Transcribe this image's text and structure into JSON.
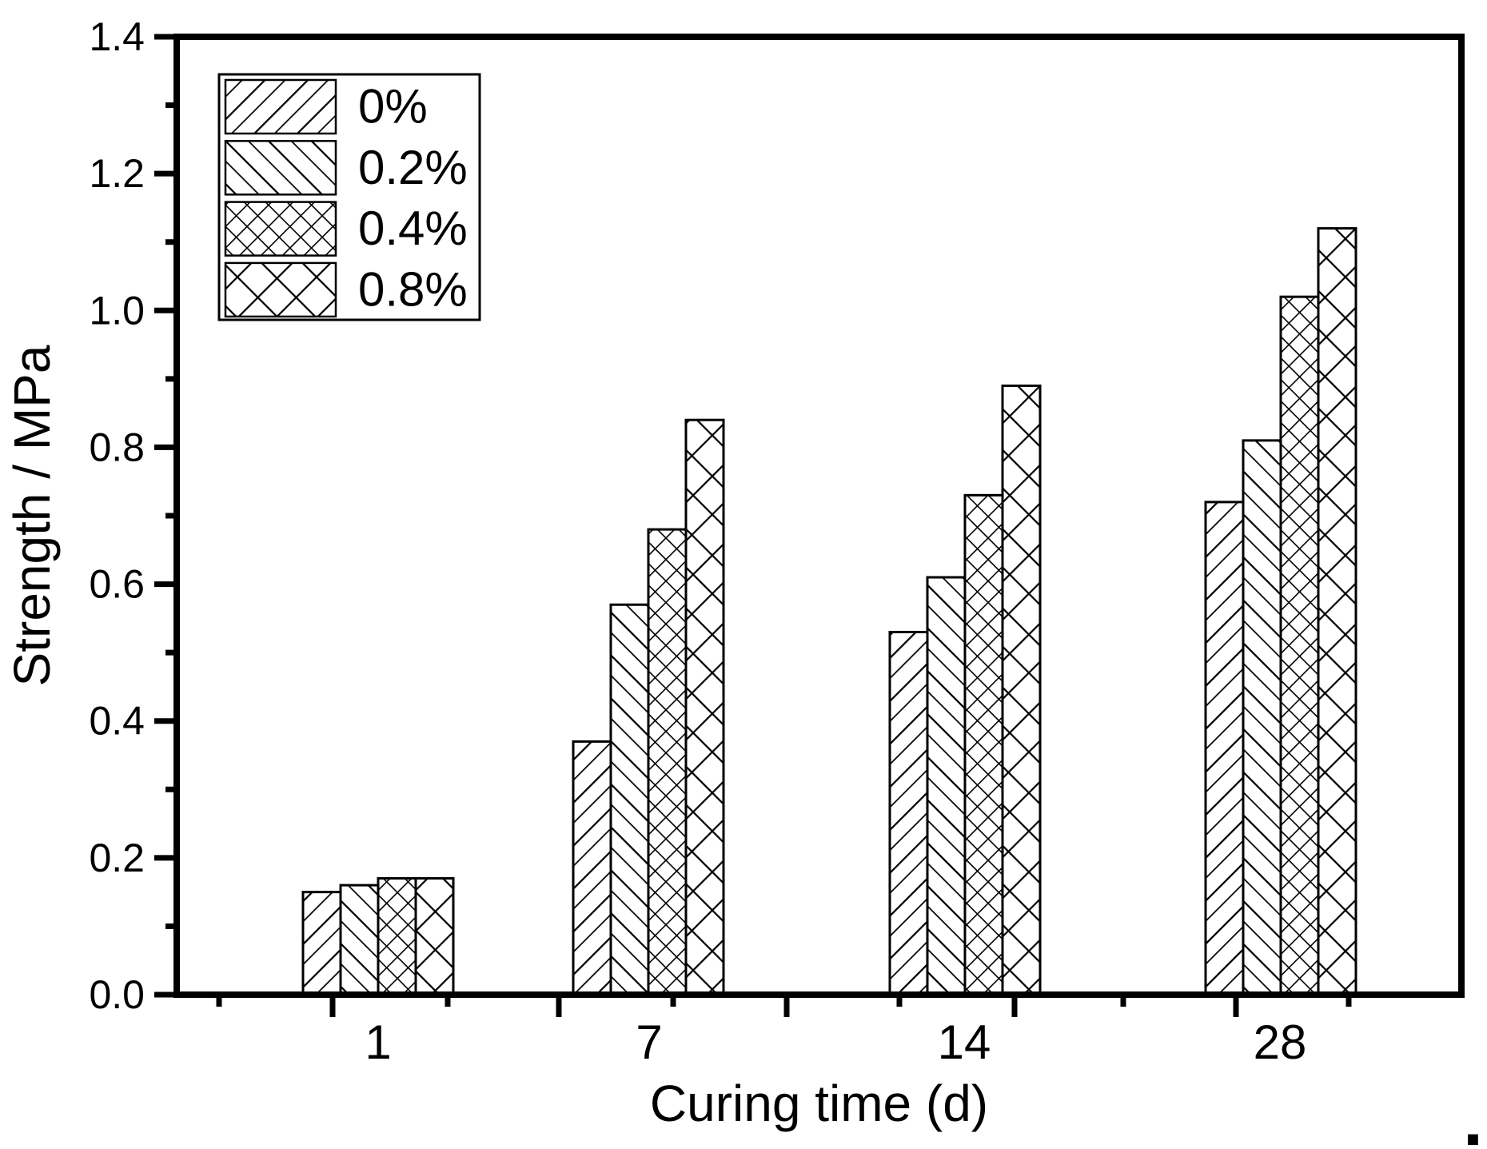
{
  "chart_data": {
    "type": "bar",
    "title": "",
    "xlabel": "Curing time (d)",
    "ylabel": "Strength / MPa",
    "categories": [
      "1",
      "7",
      "14",
      "28"
    ],
    "series": [
      {
        "name": "0%",
        "hatch": "diagonal-forward",
        "values": [
          0.15,
          0.37,
          0.53,
          0.72
        ]
      },
      {
        "name": "0.2%",
        "hatch": "diagonal-back",
        "values": [
          0.16,
          0.57,
          0.61,
          0.81
        ]
      },
      {
        "name": "0.4%",
        "hatch": "crosshatch-dense",
        "values": [
          0.17,
          0.68,
          0.73,
          1.02
        ]
      },
      {
        "name": "0.8%",
        "hatch": "crosshatch-wide",
        "values": [
          0.17,
          0.84,
          0.89,
          1.12
        ]
      }
    ],
    "ylim": [
      0.0,
      1.4
    ],
    "y_major_ticks": [
      0.0,
      0.2,
      0.4,
      0.6,
      0.8,
      1.0,
      1.2,
      1.4
    ],
    "y_tick_labels": [
      "0.0",
      "0.2",
      "0.4",
      "0.6",
      "0.8",
      "1.0",
      "1.2",
      "1.4"
    ],
    "y_minor_step": 0.1,
    "grid": false,
    "legend_position": "upper-left",
    "bar_fill_color": "#ffffff",
    "line_color": "#000000"
  },
  "footnote_dot": "."
}
